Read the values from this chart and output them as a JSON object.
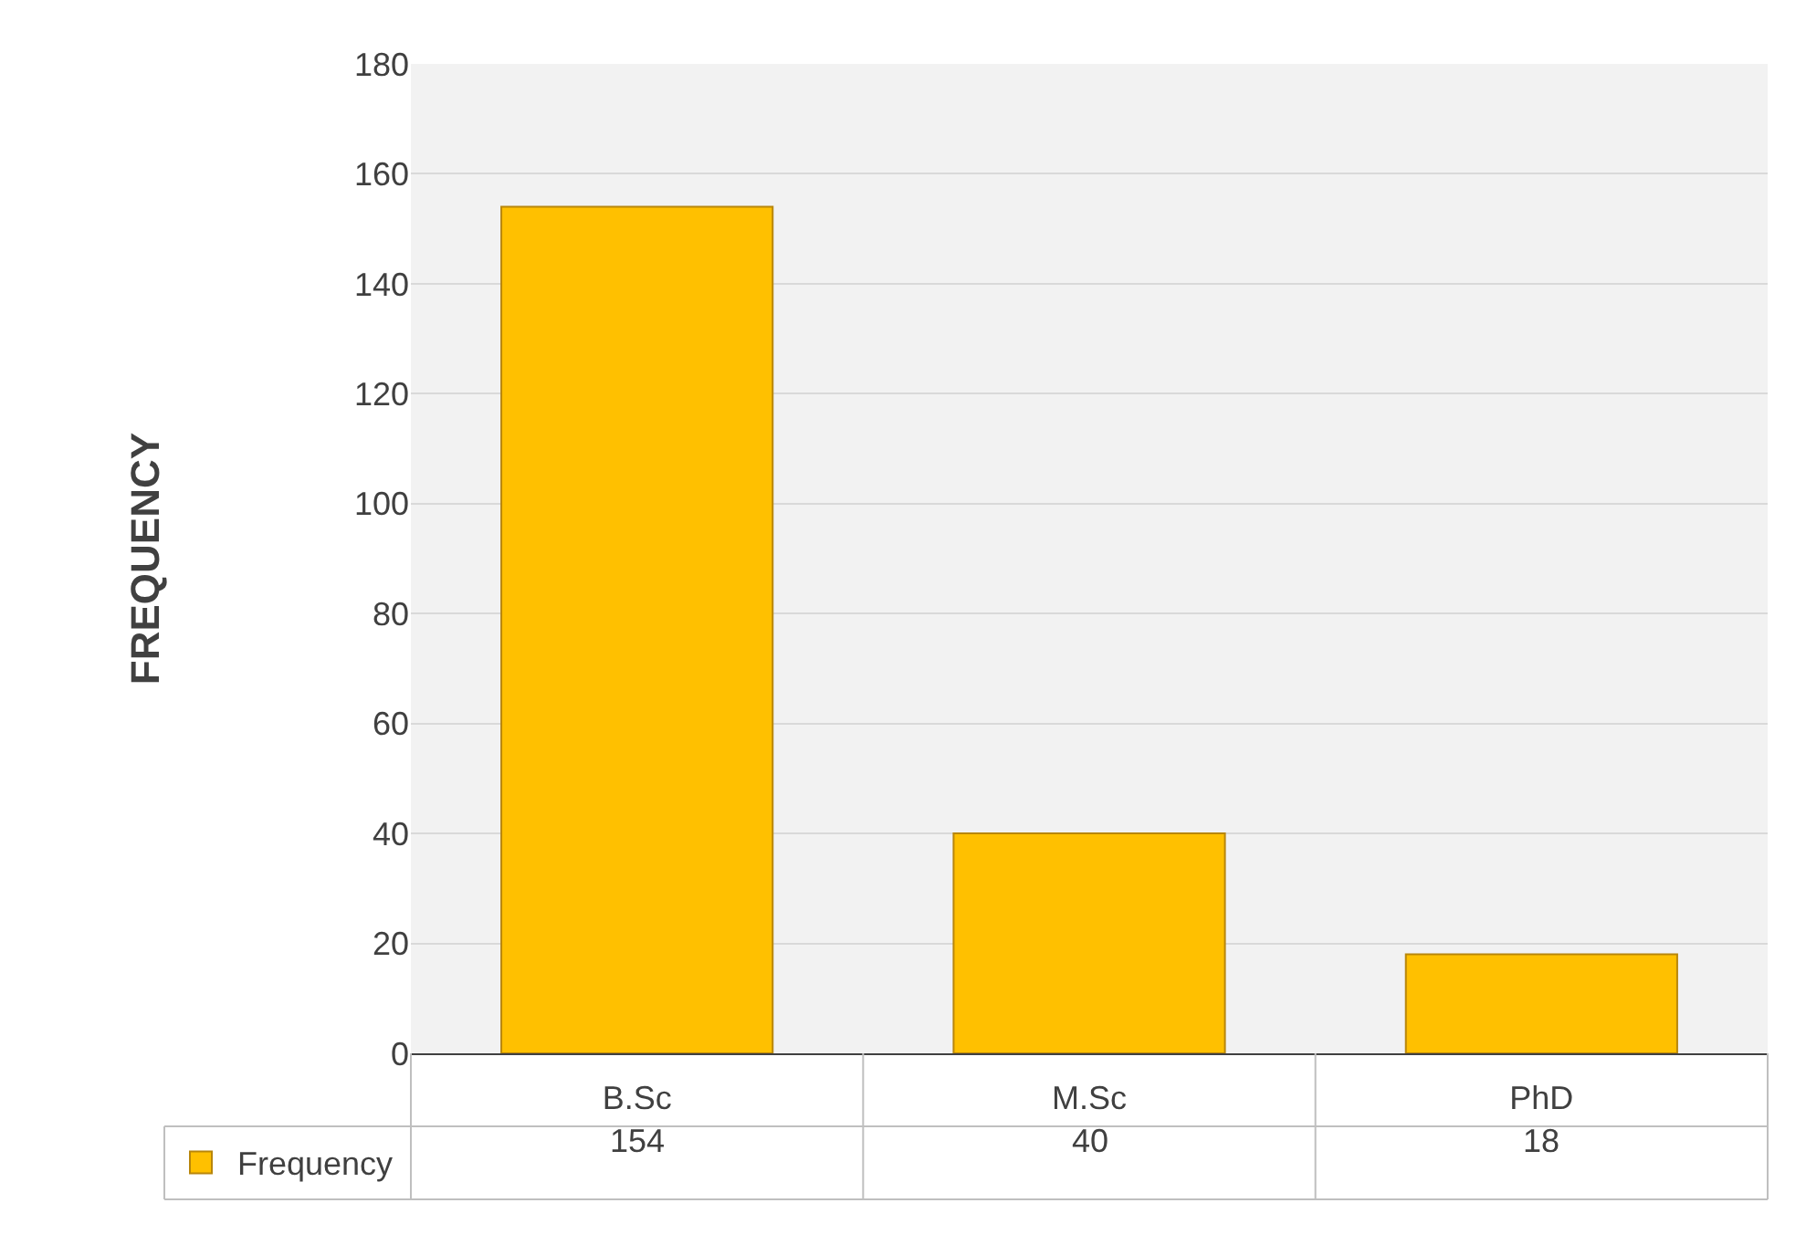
{
  "chart_data": {
    "type": "bar",
    "ylabel": "FREQUENCY",
    "categories": [
      "B.Sc",
      "M.Sc",
      "PhD"
    ],
    "series": [
      {
        "name": "Frequency",
        "color": "#ffc000",
        "values": [
          154,
          40,
          18
        ]
      }
    ],
    "ylim": [
      0,
      180
    ],
    "yticks": [
      0,
      20,
      40,
      60,
      80,
      100,
      120,
      140,
      160,
      180
    ],
    "grid": "y",
    "legend": "bottom left",
    "data_labels": true
  }
}
